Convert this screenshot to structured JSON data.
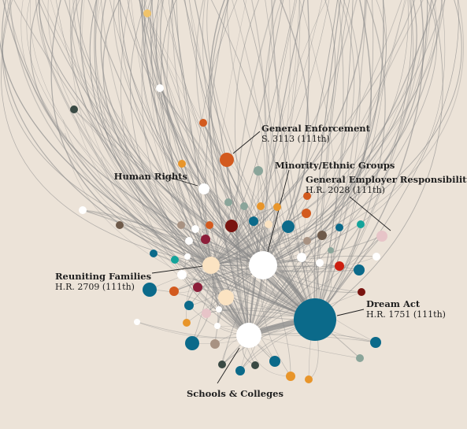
{
  "labels": {
    "general_enforcement": {
      "title": "General Enforcement",
      "sub": "S. 3113 (111th)"
    },
    "minority_ethnic": {
      "title": "Minority/Ethnic Groups"
    },
    "general_employer": {
      "title": "General Employer Responsibility",
      "sub": "H.R. 2028 (111th)"
    },
    "human_rights": {
      "title": "Human Rights"
    },
    "reuniting_families": {
      "title": "Reuniting Families",
      "sub": "H.R. 2709 (111th)"
    },
    "dream_act": {
      "title": "Dream Act",
      "sub": "H.R. 1751 (111th)"
    },
    "schools_colleges": {
      "title": "Schools & Colleges"
    }
  },
  "colors": {
    "background": "#ece3d8",
    "edge": "#8a8a8a",
    "teal_blue": "#0b6a8a",
    "orange_red": "#d35a1e",
    "orange": "#e8952a",
    "gold": "#f0c36a",
    "cream": "#fbe3c2",
    "dark_red": "#7a1410",
    "red": "#cc1f10",
    "maroon": "#8c1e3a",
    "pink": "#e7c4c8",
    "sage": "#8aa59a",
    "turquoise": "#13a39a",
    "brown": "#6e5a4a",
    "taupe": "#a89282",
    "dark_slate": "#3a4a44",
    "white": "#ffffff"
  }
}
